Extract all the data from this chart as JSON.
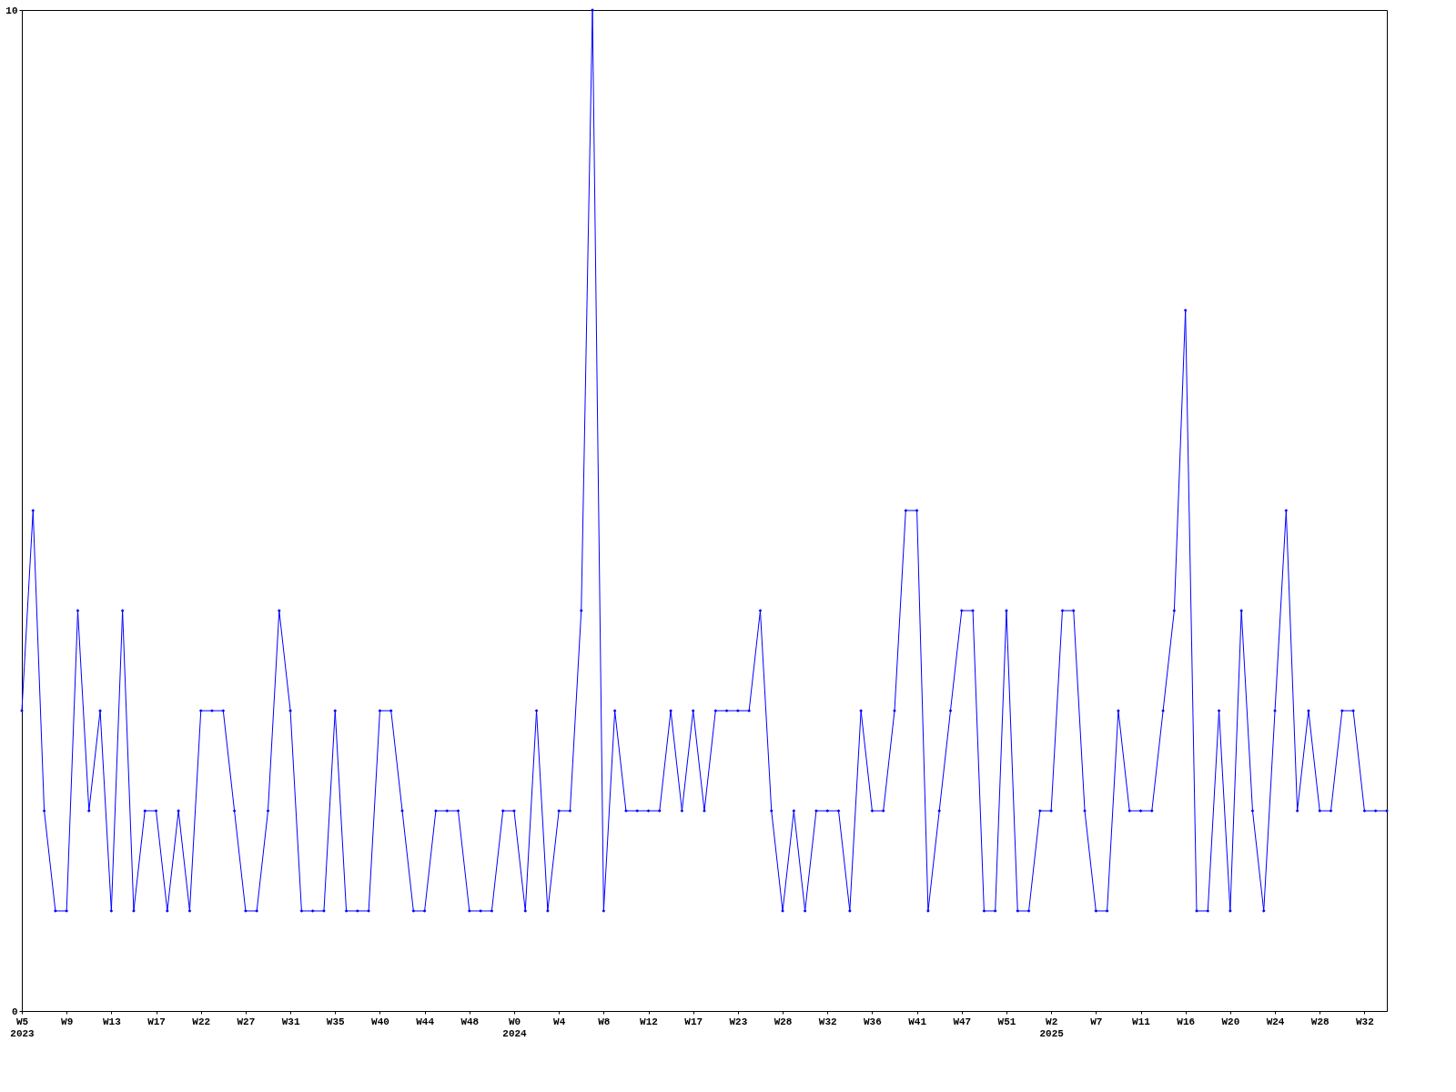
{
  "chart_data": {
    "type": "line",
    "categories": [
      "W5\n2023",
      null,
      null,
      null,
      "W9",
      null,
      null,
      null,
      "W13",
      null,
      null,
      null,
      "W17",
      null,
      null,
      null,
      "W22",
      null,
      null,
      null,
      "W27",
      null,
      null,
      null,
      "W31",
      null,
      null,
      null,
      "W35",
      null,
      null,
      null,
      "W40",
      null,
      null,
      null,
      "W44",
      null,
      null,
      null,
      "W48",
      null,
      null,
      null,
      "W0\n2024",
      null,
      null,
      null,
      "W4",
      null,
      null,
      null,
      "W8",
      null,
      null,
      null,
      "W12",
      null,
      null,
      null,
      "W17",
      null,
      null,
      null,
      "W23",
      null,
      null,
      null,
      "W28",
      null,
      null,
      null,
      "W32",
      null,
      null,
      null,
      "W36",
      null,
      null,
      null,
      "W41",
      null,
      null,
      null,
      "W47",
      null,
      null,
      null,
      "W51",
      null,
      null,
      null,
      "W2\n2025",
      null,
      null,
      null,
      "W7",
      null,
      null,
      null,
      "W11",
      null,
      null,
      null,
      "W16",
      null,
      null,
      null,
      "W20",
      null,
      null,
      null,
      "W24",
      null,
      null,
      null,
      "W28",
      null,
      null,
      null,
      "W32",
      null,
      null
    ],
    "series": [
      {
        "color": "#0000ff",
        "values": [
          3,
          5,
          2,
          1,
          1,
          4,
          2,
          3,
          1,
          4,
          1,
          2,
          2,
          1,
          2,
          1,
          3,
          3,
          3,
          2,
          1,
          1,
          2,
          4,
          3,
          1,
          1,
          1,
          3,
          1,
          1,
          1,
          3,
          3,
          2,
          1,
          1,
          2,
          2,
          2,
          1,
          1,
          1,
          2,
          2,
          1,
          3,
          1,
          2,
          2,
          4,
          10,
          1,
          3,
          2,
          2,
          2,
          2,
          3,
          2,
          3,
          2,
          3,
          3,
          3,
          3,
          4,
          2,
          1,
          2,
          1,
          2,
          2,
          2,
          1,
          3,
          2,
          2,
          3,
          5,
          5,
          1,
          2,
          3,
          4,
          4,
          1,
          1,
          4,
          1,
          1,
          2,
          2,
          4,
          4,
          2,
          1,
          1,
          3,
          2,
          2,
          2,
          3,
          4,
          7,
          1,
          1,
          3,
          1,
          4,
          2,
          1,
          3,
          5,
          2,
          3,
          2,
          2,
          3,
          3,
          2,
          2,
          2
        ]
      }
    ],
    "ylim": [
      0,
      10
    ],
    "yticks": [
      0,
      10
    ],
    "grid": false,
    "marker": "diamond",
    "line_style": "solid"
  }
}
